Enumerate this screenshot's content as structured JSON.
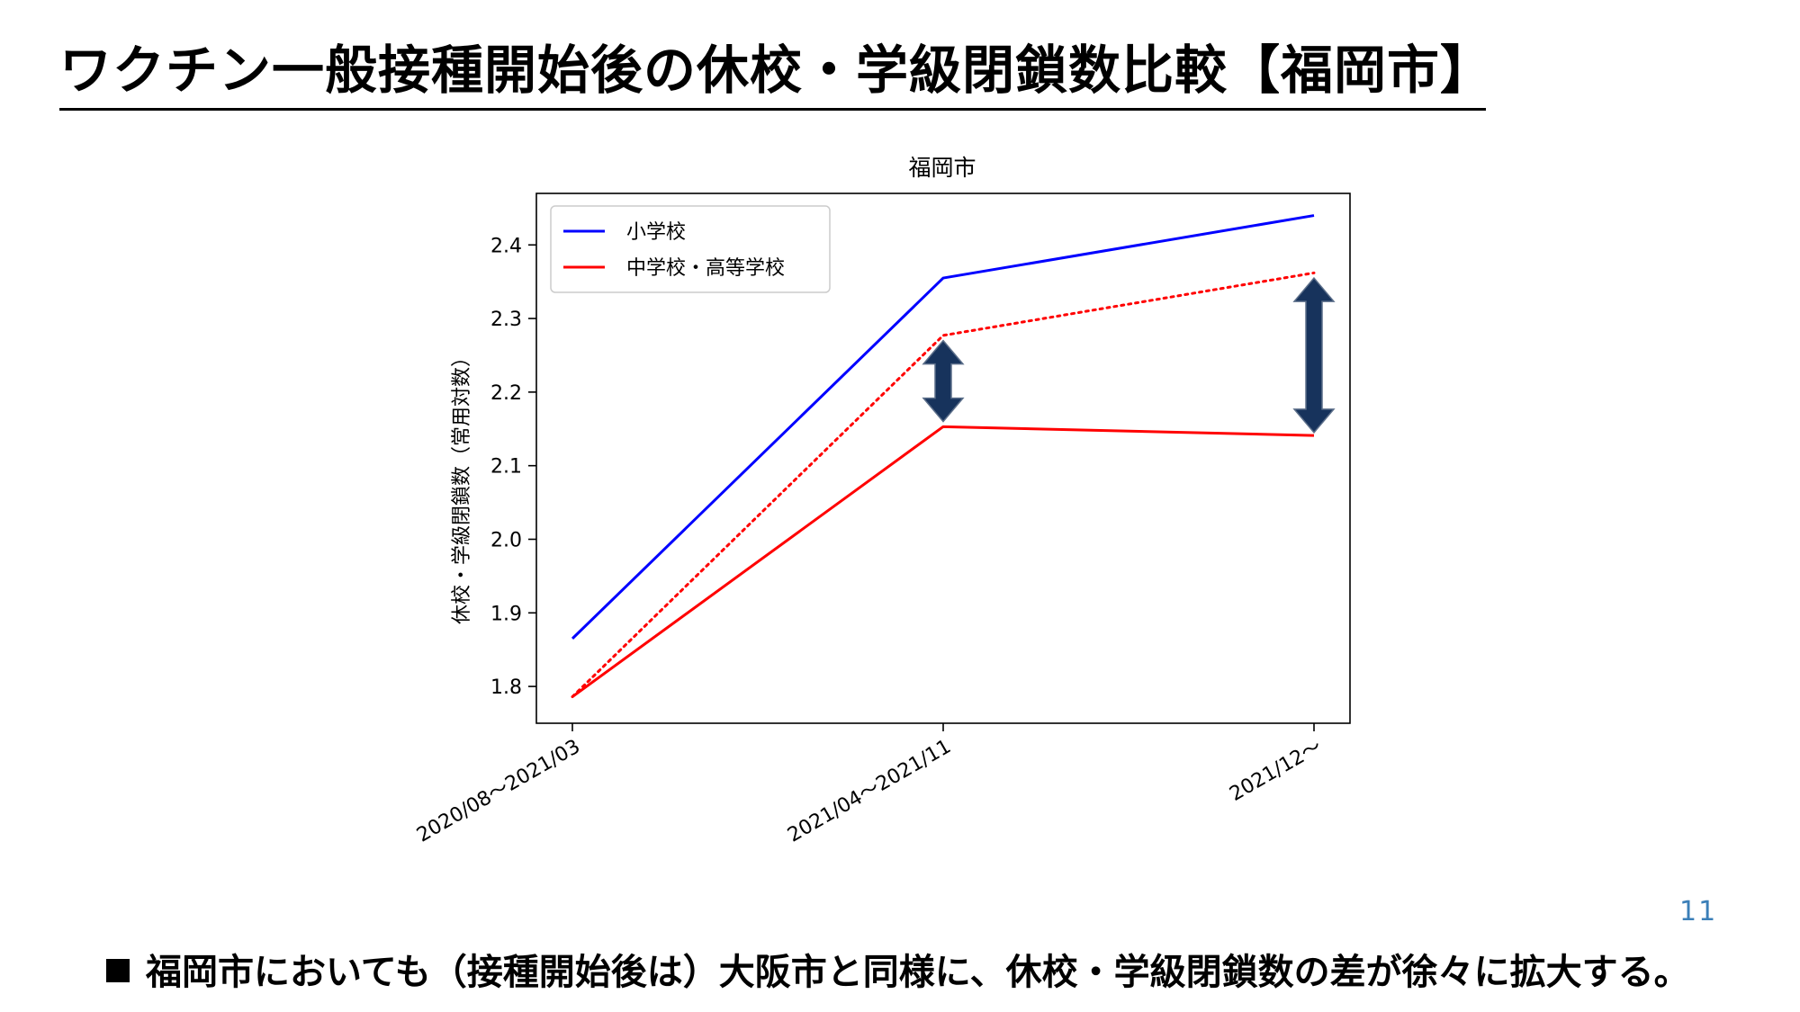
{
  "slide": {
    "title": "ワクチン一般接種開始後の休校・学級閉鎖数比較【福岡市】",
    "page_number": "11",
    "note": "福岡市においても（接種開始後は）大阪市と同様に、休校・学級閉鎖数の差が徐々に拡大する。"
  },
  "chart_data": {
    "type": "line",
    "title": "福岡市",
    "xlabel": "",
    "ylabel": "休校・学級閉鎖数（常用対数）",
    "categories": [
      "2020/08～2021/03",
      "2021/04～2021/11",
      "2021/12～"
    ],
    "ylim": [
      1.75,
      2.47
    ],
    "yticks": [
      1.8,
      1.9,
      2.0,
      2.1,
      2.2,
      2.3,
      2.4
    ],
    "grid": false,
    "legend_position": "top-left",
    "series": [
      {
        "name": "小学校",
        "color": "#0000ff",
        "style": "solid",
        "values": [
          1.865,
          2.355,
          2.44
        ],
        "in_legend": true
      },
      {
        "name": "中学校・高等学校",
        "color": "#ff0000",
        "style": "solid",
        "values": [
          1.786,
          2.153,
          2.141
        ],
        "in_legend": true
      },
      {
        "name": "",
        "color": "#ff0000",
        "style": "dotted",
        "values": [
          1.786,
          2.277,
          2.362
        ],
        "in_legend": false
      }
    ],
    "annotations": [
      {
        "type": "double-arrow",
        "category_index": 1,
        "from": 2.16,
        "to": 2.27,
        "color": "#17335c"
      },
      {
        "type": "double-arrow",
        "category_index": 2,
        "from": 2.145,
        "to": 2.355,
        "color": "#17335c"
      }
    ]
  }
}
